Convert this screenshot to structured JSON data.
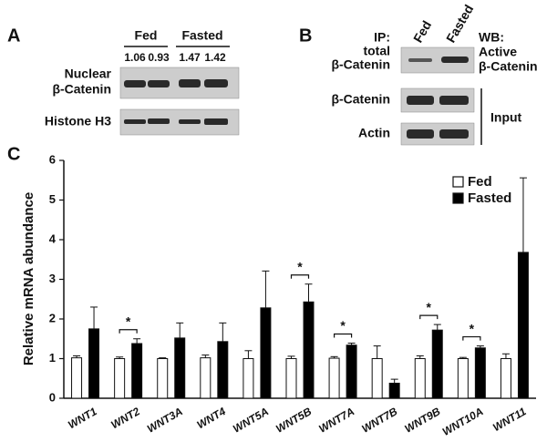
{
  "panel_a": {
    "label": "A",
    "groups": [
      "Fed",
      "Fasted"
    ],
    "ratios": [
      1.06,
      0.93,
      1.47,
      1.42
    ],
    "rows": [
      "Nuclear",
      "β-Catenin",
      "Histone H3"
    ]
  },
  "panel_b": {
    "label": "B",
    "ip": [
      "IP:",
      "total",
      "β-Catenin"
    ],
    "lanes": [
      "Fed",
      "Fasted"
    ],
    "wb": [
      "WB:",
      "Active",
      "β-Catenin"
    ],
    "rows": [
      "β-Catenin",
      "Actin"
    ],
    "input": "Input"
  },
  "chart_data": {
    "type": "bar",
    "panel_label": "C",
    "y_label": "Relative mRNA abundance",
    "categories": [
      "WNT1",
      "WNT2",
      "WNT3A",
      "WNT4",
      "WNT5A",
      "WNT5B",
      "WNT7A",
      "WNT7B",
      "WNT9B",
      "WNT10A",
      "WNT11"
    ],
    "series": [
      {
        "name": "Fed",
        "color": "#ffffff",
        "values": [
          1.02,
          1.0,
          1.0,
          1.02,
          1.0,
          1.0,
          1.01,
          1.0,
          1.0,
          1.0,
          1.0
        ],
        "errors": [
          0.05,
          0.04,
          0.02,
          0.07,
          0.2,
          0.06,
          0.04,
          0.32,
          0.07,
          0.03,
          0.12
        ]
      },
      {
        "name": "Fasted",
        "color": "#000000",
        "values": [
          1.75,
          1.38,
          1.52,
          1.43,
          2.28,
          2.43,
          1.34,
          0.38,
          1.72,
          1.27,
          3.68
        ],
        "errors": [
          0.55,
          0.12,
          0.38,
          0.47,
          0.93,
          0.45,
          0.05,
          0.1,
          0.14,
          0.05,
          1.88
        ]
      }
    ],
    "significance": [
      null,
      "*",
      null,
      null,
      null,
      "*",
      "*",
      null,
      "*",
      "*",
      null
    ],
    "ylim": [
      0,
      6
    ],
    "yticks": [
      0,
      1,
      2,
      3,
      4,
      5,
      6
    ],
    "grid": false,
    "legend": "top-right"
  }
}
